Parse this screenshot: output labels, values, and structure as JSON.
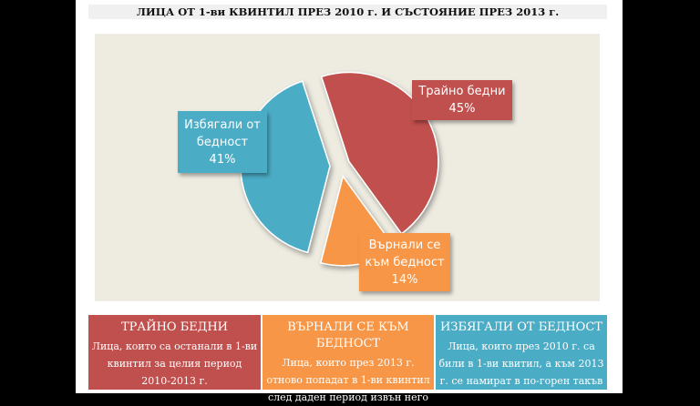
{
  "chart_data": {
    "type": "pie",
    "title": "ЛИЦА ОТ 1-ви КВИНТИЛ ПРЕЗ 2010 г.  И СЪСТОЯНИЕ ПРЕЗ 2013 г.",
    "slices": [
      {
        "name": "Трайно бедни",
        "value": 45,
        "label": "45%",
        "color": "#c0504d"
      },
      {
        "name": "Върнали се към бедност",
        "value": 14,
        "label": "14%",
        "color": "#f79646"
      },
      {
        "name": "Избягали от бедност",
        "value": 41,
        "label": "41%",
        "color": "#4bacc6"
      }
    ]
  },
  "legend_boxes": [
    {
      "heading": "ТРАЙНО БЕДНИ",
      "lines": [
        "Лица, които са останали в 1-ви",
        "квинтил за целия период",
        "2010-2013  г."
      ],
      "color": "#c0504d"
    },
    {
      "heading": "ВЪРНАЛИ СЕ КЪМ БЕДНОСТ",
      "lines": [
        "Лица, които през 2013  г.",
        "отново попадат в 1-ви квинтил",
        "след даден период извън него"
      ],
      "color": "#f79646"
    },
    {
      "heading": "ИЗБЯГАЛИ ОТ БЕДНОСТ",
      "lines": [
        "Лица, които през 2010  г. са",
        "били в 1-ви квитил, а към 2013",
        "г. се намират в по-горен такъв"
      ],
      "color": "#4bacc6"
    }
  ],
  "pie_labels": [
    {
      "lines": [
        "Трайно бедни",
        "45%"
      ]
    },
    {
      "lines": [
        "Върнали се",
        "към бедност",
        "14%"
      ]
    },
    {
      "lines": [
        "Избягали от",
        "бедност",
        "41%"
      ]
    }
  ]
}
